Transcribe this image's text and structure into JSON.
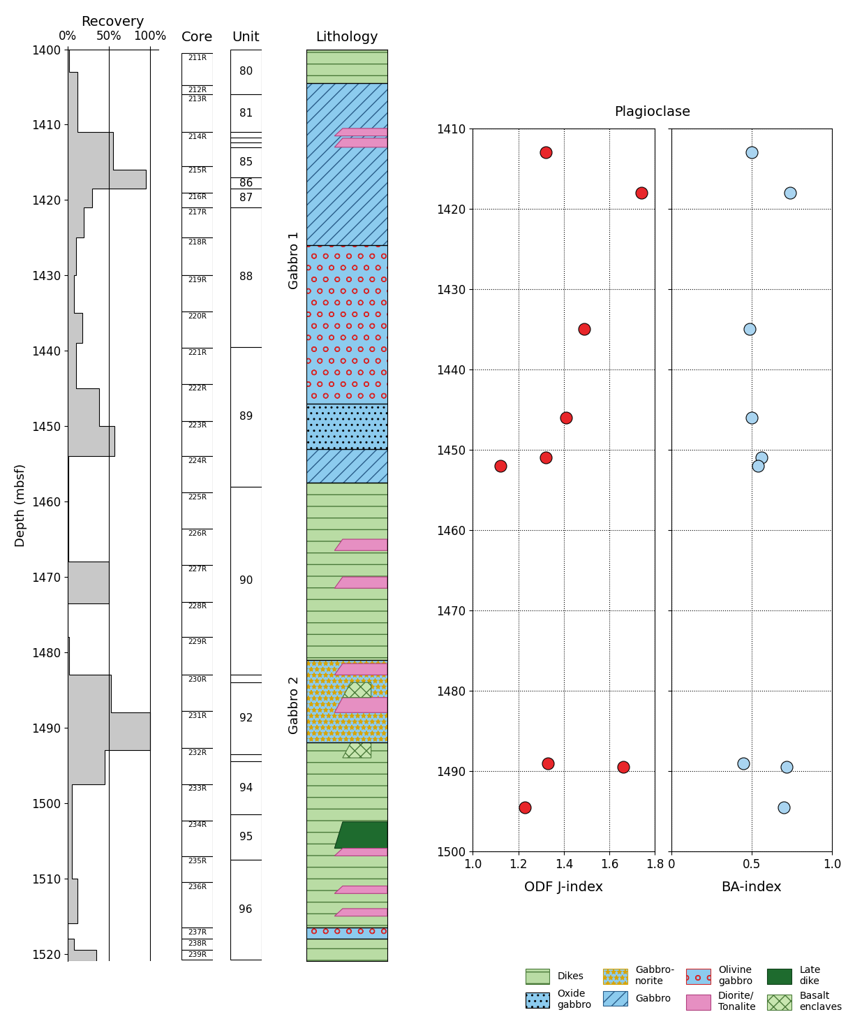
{
  "chart_data": [
    {
      "type": "step",
      "title": "Recovery",
      "ylabel": "Depth (mbsf)",
      "orientation": "horizontal",
      "bins": [
        1400,
        1403,
        1411,
        1416,
        1418.5,
        1421,
        1425,
        1430,
        1435,
        1439,
        1445,
        1450,
        1454,
        1468,
        1473.5,
        1478,
        1483,
        1488,
        1493,
        1497.5,
        1510,
        1516,
        1518,
        1519.5,
        1521
      ],
      "values": [
        2,
        12,
        55,
        95,
        30,
        20,
        10,
        8,
        18,
        10,
        38,
        57,
        1,
        50,
        0,
        2,
        53,
        100,
        45,
        5,
        12,
        0,
        8,
        35
      ],
      "color": "#c8c8c8",
      "xlim": [
        0,
        110
      ],
      "xticks": [
        {
          "value": 0,
          "label": "0%"
        },
        {
          "value": 50,
          "label": "50%"
        },
        {
          "value": 100,
          "label": "100%"
        }
      ],
      "ylim": [
        1521,
        1400
      ],
      "yticks": [
        1400,
        1410,
        1420,
        1430,
        1440,
        1450,
        1460,
        1470,
        1480,
        1490,
        1500,
        1510,
        1520
      ],
      "grid": true
    },
    {
      "type": "scatter",
      "title": "Plagioclase",
      "xlabel": "ODF J-index",
      "x": [
        1.32,
        1.74,
        1.49,
        1.41,
        1.32,
        1.12,
        1.33,
        1.66,
        1.23
      ],
      "y": [
        1413,
        1418,
        1435,
        1446,
        1451,
        1452,
        1489,
        1489.5,
        1494.5
      ],
      "color": "#e8262a",
      "xlim": [
        1.0,
        1.8
      ],
      "xticks": [
        1.0,
        1.2,
        1.4,
        1.6,
        1.8
      ],
      "ylim": [
        1500,
        1410
      ],
      "yticks": [
        1410,
        1420,
        1430,
        1440,
        1450,
        1460,
        1470,
        1480,
        1490,
        1500
      ],
      "grid": true
    },
    {
      "type": "scatter",
      "xlabel": "BA-index",
      "x": [
        0.5,
        0.74,
        0.49,
        0.5,
        0.56,
        0.54,
        0.45,
        0.72,
        0.7
      ],
      "y": [
        1413,
        1418,
        1435,
        1446,
        1451,
        1452,
        1489,
        1489.5,
        1494.5
      ],
      "color": "#a9d4f0",
      "xlim": [
        0,
        1.0
      ],
      "xticks": [
        0,
        0.5,
        1.0
      ],
      "ylim": [
        1500,
        1410
      ],
      "yticks": [
        1410,
        1420,
        1430,
        1440,
        1450,
        1460,
        1470,
        1480,
        1490,
        1500
      ],
      "grid": true,
      "tick_labels": "x"
    }
  ],
  "log_columns": {
    "cores": {
      "title": "Core",
      "intervals": [
        {
          "label": "211R",
          "top": 1400.5,
          "bottom": 1404.8
        },
        {
          "label": "212R",
          "top": 1404.8,
          "bottom": 1406
        },
        {
          "label": "213R",
          "top": 1406,
          "bottom": 1411
        },
        {
          "label": "214R",
          "top": 1411,
          "bottom": 1415.5
        },
        {
          "label": "215R",
          "top": 1415.5,
          "bottom": 1419
        },
        {
          "label": "216R",
          "top": 1419,
          "bottom": 1421
        },
        {
          "label": "217R",
          "top": 1421,
          "bottom": 1425
        },
        {
          "label": "218R",
          "top": 1425,
          "bottom": 1430
        },
        {
          "label": "219R",
          "top": 1430,
          "bottom": 1434.8
        },
        {
          "label": "220R",
          "top": 1434.8,
          "bottom": 1439.6
        },
        {
          "label": "221R",
          "top": 1439.6,
          "bottom": 1444.4
        },
        {
          "label": "222R",
          "top": 1444.4,
          "bottom": 1449.3
        },
        {
          "label": "223R",
          "top": 1449.3,
          "bottom": 1454
        },
        {
          "label": "224R",
          "top": 1454,
          "bottom": 1458.8
        },
        {
          "label": "225R",
          "top": 1458.8,
          "bottom": 1463.6
        },
        {
          "label": "226R",
          "top": 1463.6,
          "bottom": 1468.4
        },
        {
          "label": "227R",
          "top": 1468.4,
          "bottom": 1473.3
        },
        {
          "label": "228R",
          "top": 1473.3,
          "bottom": 1478
        },
        {
          "label": "229R",
          "top": 1478,
          "bottom": 1483
        },
        {
          "label": "230R",
          "top": 1483,
          "bottom": 1487.8
        },
        {
          "label": "231R",
          "top": 1487.8,
          "bottom": 1492.7
        },
        {
          "label": "232R",
          "top": 1492.7,
          "bottom": 1497.5
        },
        {
          "label": "233R",
          "top": 1497.5,
          "bottom": 1502.3
        },
        {
          "label": "234R",
          "top": 1502.3,
          "bottom": 1507.1
        },
        {
          "label": "235R",
          "top": 1507.1,
          "bottom": 1510.5
        },
        {
          "label": "236R",
          "top": 1510.5,
          "bottom": 1516.5
        },
        {
          "label": "237R",
          "top": 1516.5,
          "bottom": 1518
        },
        {
          "label": "238R",
          "top": 1518,
          "bottom": 1519.5
        },
        {
          "label": "239R",
          "top": 1519.5,
          "bottom": 1520.8
        }
      ]
    },
    "units": {
      "title": "Unit",
      "intervals": [
        {
          "label": "80",
          "top": 1400,
          "bottom": 1406
        },
        {
          "label": "81",
          "top": 1406,
          "bottom": 1411
        },
        {
          "label": null,
          "top": 1411,
          "bottom": 1411.7
        },
        {
          "label": null,
          "top": 1411.7,
          "bottom": 1412.4
        },
        {
          "label": null,
          "top": 1412.4,
          "bottom": 1413
        },
        {
          "label": "85",
          "top": 1413,
          "bottom": 1417
        },
        {
          "label": "86",
          "top": 1417,
          "bottom": 1418.5
        },
        {
          "label": "87",
          "top": 1418.5,
          "bottom": 1421
        },
        {
          "label": "88",
          "top": 1421,
          "bottom": 1439.5
        },
        {
          "label": "89",
          "top": 1439.5,
          "bottom": 1458
        },
        {
          "label": "90",
          "top": 1458,
          "bottom": 1483
        },
        {
          "label": null,
          "top": 1483,
          "bottom": 1484
        },
        {
          "label": "92",
          "top": 1484,
          "bottom": 1493.5
        },
        {
          "label": null,
          "top": 1493.5,
          "bottom": 1494.5
        },
        {
          "label": "94",
          "top": 1494.5,
          "bottom": 1501.5
        },
        {
          "label": "95",
          "top": 1501.5,
          "bottom": 1507.5
        },
        {
          "label": "96",
          "top": 1507.5,
          "bottom": 1520.8
        }
      ]
    },
    "lithology": {
      "title": "Lithology",
      "intervals": [
        {
          "kind": 0,
          "top": 1400,
          "bottom": 1404.5
        },
        {
          "kind": 3,
          "top": 1404.5,
          "bottom": 1426
        },
        {
          "kind": 4,
          "top": 1426,
          "bottom": 1447
        },
        {
          "kind": 1,
          "top": 1447,
          "bottom": 1453
        },
        {
          "kind": 3,
          "top": 1453,
          "bottom": 1457.5
        },
        {
          "kind": 0,
          "top": 1457.5,
          "bottom": 1481
        },
        {
          "kind": 2,
          "top": 1481,
          "bottom": 1492
        },
        {
          "kind": 0,
          "top": 1492,
          "bottom": 1516.5
        },
        {
          "kind": 4,
          "top": 1516.5,
          "bottom": 1518
        },
        {
          "kind": 0,
          "top": 1518,
          "bottom": 1521
        }
      ],
      "veins": [
        {
          "kind": 5,
          "top": 1410.5,
          "bottom": 1411.5
        },
        {
          "kind": 5,
          "top": 1411.8,
          "bottom": 1413
        },
        {
          "kind": 5,
          "top": 1465,
          "bottom": 1466.5
        },
        {
          "kind": 5,
          "top": 1470,
          "bottom": 1471.5
        },
        {
          "kind": 5,
          "top": 1481.5,
          "bottom": 1483
        },
        {
          "kind": 5,
          "top": 1486,
          "bottom": 1488
        },
        {
          "kind": 7,
          "top": 1484,
          "bottom": 1486
        },
        {
          "kind": 7,
          "top": 1492,
          "bottom": 1494
        },
        {
          "kind": 6,
          "top": 1502.5,
          "bottom": 1506
        },
        {
          "kind": 5,
          "top": 1506,
          "bottom": 1507
        },
        {
          "kind": 5,
          "top": 1511,
          "bottom": 1512
        },
        {
          "kind": 5,
          "top": 1514,
          "bottom": 1515
        }
      ],
      "labels": [
        {
          "text": "Gabbro 1",
          "depth": 1428
        },
        {
          "text": "Gabbro 2",
          "depth": 1487
        }
      ],
      "legend": [
        {
          "label": "Dikes",
          "color": "#b9dca4"
        },
        {
          "label": "Oxide\ngabbro",
          "color": "#8ccbee"
        },
        {
          "label": "Gabbro-\nnorite",
          "color": "#8ccbee"
        },
        {
          "label": "Gabbro",
          "color": "#8ccbee"
        },
        {
          "label": "Olivine\ngabbro",
          "color": "#8ccbee"
        },
        {
          "label": "Diorite/\nTonalite",
          "color": "#e68fc2"
        },
        {
          "label": "Late\ndike",
          "color": "#1e6b2e"
        },
        {
          "label": "Basalt\nenclaves",
          "color": "#c8e6b0"
        }
      ]
    }
  }
}
